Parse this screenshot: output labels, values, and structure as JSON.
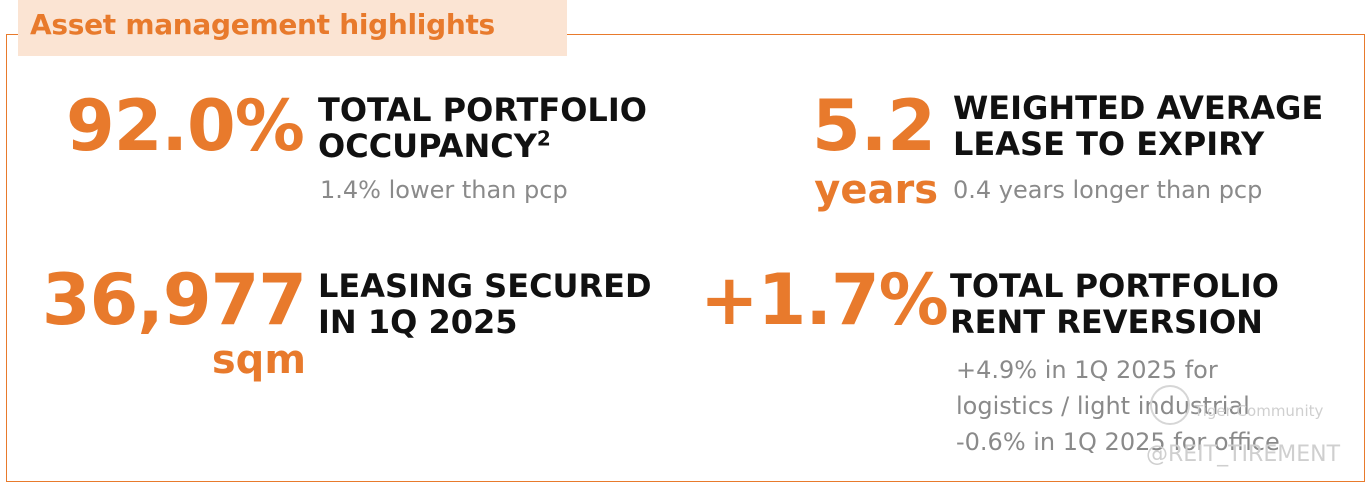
{
  "header": {
    "title": "Asset management highlights"
  },
  "metrics": {
    "occupancy": {
      "value": "92.0%",
      "heading_line1": "TOTAL PORTFOLIO",
      "heading_line2": "OCCUPANCY",
      "footnote": "2",
      "note": "1.4% lower than pcp"
    },
    "wale": {
      "value": "5.2",
      "unit": "years",
      "heading_line1": "WEIGHTED AVERAGE",
      "heading_line2": "LEASE TO EXPIRY",
      "note": "0.4 years longer than pcp"
    },
    "leasing": {
      "value": "36,977",
      "unit": "sqm",
      "heading_line1": "LEASING SECURED",
      "heading_line2": "IN 1Q 2025"
    },
    "reversion": {
      "value": "+1.7%",
      "heading_line1": "TOTAL PORTFOLIO",
      "heading_line2": "RENT REVERSION",
      "note_line1": "+4.9% in 1Q 2025 for",
      "note_line2": "logistics / light industrial",
      "note_line3": "-0.6% in 1Q 2025 for office"
    }
  },
  "watermark": {
    "brand": "Tiger Community",
    "handle": "@REIT_TIREMENT"
  },
  "colors": {
    "accent": "#e87a2c",
    "title_bg": "#fbe4d3",
    "heading": "#111111",
    "note": "#8a8a8a"
  }
}
